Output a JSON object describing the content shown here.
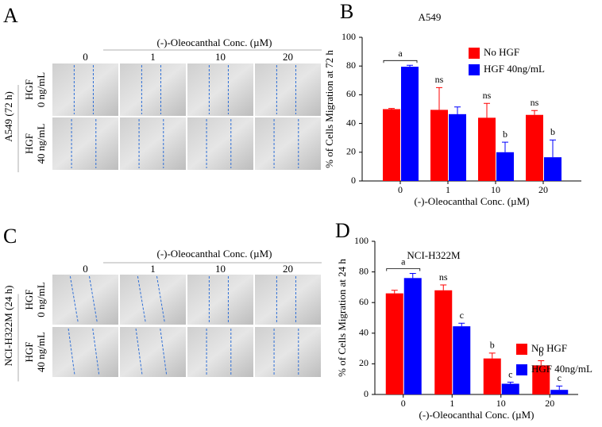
{
  "panels": [
    {
      "letter": "A",
      "header": "(-)-Oleocanthal Conc. (µM)",
      "columns": [
        "0",
        "1",
        "10",
        "20"
      ],
      "side_label": "A549 (72 h)",
      "rows": [
        [
          "HGF",
          "0 ng/mL"
        ],
        [
          "HGF",
          "40 ng/mL"
        ]
      ]
    },
    {
      "letter": "C",
      "header": "(-)-Oleocanthal Conc. (µM)",
      "columns": [
        "0",
        "1",
        "10",
        "20"
      ],
      "side_label": "NCI-H322M (24 h)",
      "rows": [
        [
          "HGF",
          "0 ng/mL"
        ],
        [
          "HGF",
          "40 ng/mL"
        ]
      ]
    }
  ],
  "chart_data": [
    {
      "type": "bar",
      "letter": "B",
      "title": "A549",
      "x_label": "(-)-Oleocanthal Conc. (µM)",
      "y_label": "% of Cells Migration at 72 h",
      "categories": [
        "0",
        "1",
        "10",
        "20"
      ],
      "series": [
        {
          "name": "No HGF",
          "color": "#ff0000",
          "values": [
            50,
            49.5,
            44,
            46
          ],
          "errors": [
            0.5,
            15.5,
            10,
            3
          ],
          "labels": [
            null,
            "ns",
            "ns",
            "ns"
          ]
        },
        {
          "name": "HGF 40ng/mL",
          "color": "#0000ff",
          "values": [
            79.5,
            46.5,
            20,
            16.5
          ],
          "errors": [
            1,
            5,
            7,
            12
          ],
          "labels": [
            null,
            null,
            "b",
            "b"
          ]
        }
      ],
      "bracket_label": "a",
      "ylim": [
        0,
        100
      ],
      "yticks": [
        0,
        20,
        40,
        60,
        80,
        100
      ],
      "legend": "upper right"
    },
    {
      "type": "bar",
      "letter": "D",
      "title": "NCI-H322M",
      "x_label": "(-)-Oleocanthal Conc. (µM)",
      "y_label": "% of Cells Migration at 24 h",
      "categories": [
        "0",
        "1",
        "10",
        "20"
      ],
      "series": [
        {
          "name": "No HGF",
          "color": "#ff0000",
          "values": [
            66,
            68,
            23.5,
            19
          ],
          "errors": [
            2,
            3.5,
            3.5,
            3
          ],
          "labels": [
            null,
            "ns",
            "b",
            "b"
          ]
        },
        {
          "name": "HGF 40ng/mL",
          "color": "#0000ff",
          "values": [
            76,
            44.5,
            7,
            3
          ],
          "errors": [
            3,
            2,
            1,
            2.5
          ],
          "labels": [
            null,
            "c",
            "c",
            "c"
          ]
        }
      ],
      "bracket_label": "a",
      "ylim": [
        0,
        100
      ],
      "yticks": [
        0,
        20,
        40,
        60,
        80,
        100
      ],
      "legend": "center right"
    }
  ]
}
